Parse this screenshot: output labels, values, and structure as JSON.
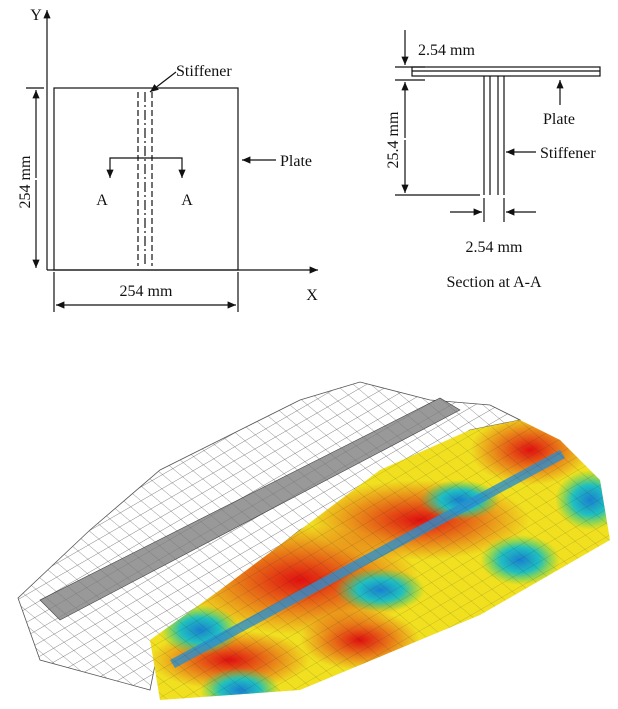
{
  "plan_view": {
    "y_axis": "Y",
    "x_axis": "X",
    "stiffener": "Stiffener",
    "plate": "Plate",
    "section_marks": [
      "A",
      "A"
    ],
    "height": "254 mm",
    "width": "254 mm"
  },
  "section_view": {
    "flange_thickness": "2.54 mm",
    "stiffener_height": "25.4 mm",
    "plate": "Plate",
    "stiffener": "Stiffener",
    "web_thickness": "2.54 mm",
    "caption": "Section at A-A"
  }
}
